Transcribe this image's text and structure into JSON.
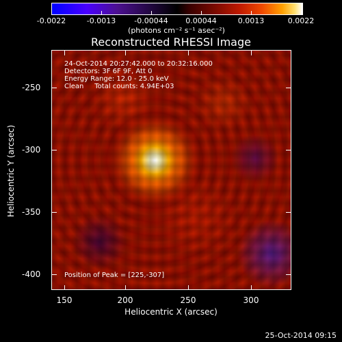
{
  "colorbar": {
    "tick_labels": [
      "-0.0022",
      "-0.0013",
      "-0.00044",
      "0.00044",
      "0.0013",
      "0.0022"
    ],
    "unit_label": "(photons cm⁻² s⁻¹ asec⁻²)"
  },
  "title": "Reconstructed RHESSI Image",
  "info_lines": [
    "24-Oct-2014 20:27:42.000 to 20:32:16.000",
    "Detectors: 3F 6F 9F, Att 0",
    "Energy Range: 12.0 - 25.0 keV",
    "Clean     Total counts: 4.94E+03"
  ],
  "peak_label": "Position of Peak = [225,-307]",
  "x_axis": {
    "title": "Heliocentric X (arcsec)",
    "tick_labels": [
      "150",
      "200",
      "250",
      "300"
    ]
  },
  "y_axis": {
    "title": "Heliocentric Y (arcsec)",
    "tick_labels": [
      "-250",
      "-300",
      "-350",
      "-400"
    ]
  },
  "timestamp": "25-Oct-2014 09:15"
}
